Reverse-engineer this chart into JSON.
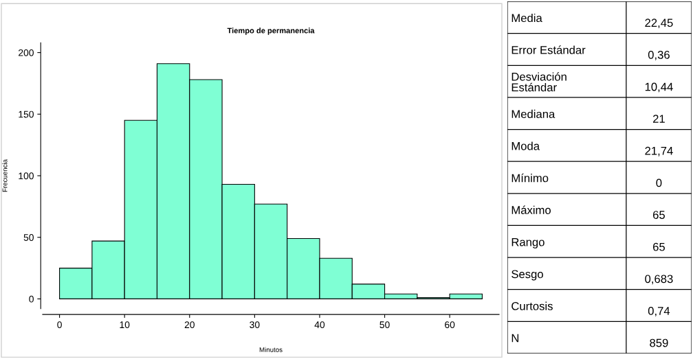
{
  "chart_data": [
    {
      "type": "histogram",
      "title": "Tiempo de permanencia",
      "xlabel": "Minutos",
      "ylabel": "Frecuencia",
      "color": "#7fffd4",
      "bins": [
        0,
        5,
        10,
        15,
        20,
        25,
        30,
        35,
        40,
        45,
        50,
        55,
        60,
        65
      ],
      "values": [
        25,
        47,
        145,
        191,
        178,
        93,
        77,
        49,
        33,
        12,
        4,
        1,
        4
      ],
      "xlim": [
        -2.6,
        67.6
      ],
      "ylim": [
        -8,
        208
      ],
      "xticks": [
        0,
        10,
        20,
        30,
        40,
        50,
        60
      ],
      "yticks": [
        0,
        50,
        100,
        150,
        200
      ],
      "grid": false
    },
    {
      "type": "other",
      "annotations": [
        "Media",
        "22,45",
        "Error Estándar",
        "0,36",
        "Desviación\nEstándar",
        "10,44",
        "Mediana",
        "21",
        "Moda",
        "21,74",
        "Mínimo",
        "0",
        "Máximo",
        "65",
        "Rango",
        "65",
        "Sesgo",
        "0,683",
        "Curtosis",
        "0,74",
        "N",
        "859"
      ]
    }
  ]
}
